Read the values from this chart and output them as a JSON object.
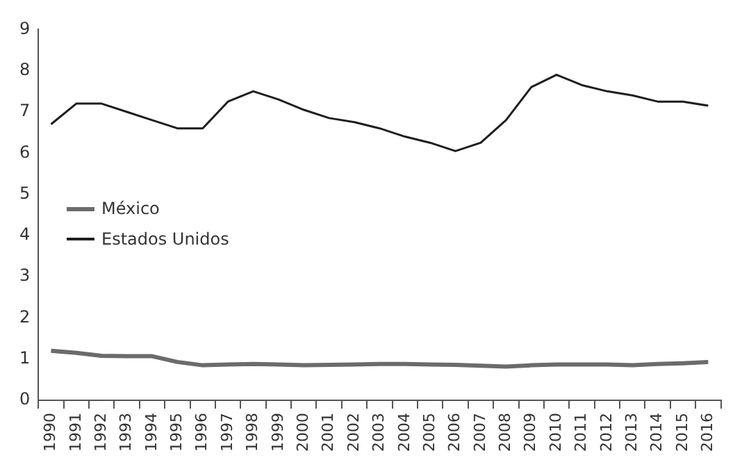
{
  "chart_data": {
    "type": "line",
    "categories": [
      "1990",
      "1991",
      "1992",
      "1993",
      "1994",
      "1995",
      "1996",
      "1997",
      "1998",
      "1999",
      "2000",
      "2001",
      "2002",
      "2003",
      "2004",
      "2005",
      "2006",
      "2007",
      "2008",
      "2009",
      "2010",
      "2011",
      "2012",
      "2013",
      "2014",
      "2015",
      "2016"
    ],
    "series": [
      {
        "name": "México",
        "color": "#6b6b6b",
        "values": [
          1.2,
          1.15,
          1.08,
          1.07,
          1.07,
          0.93,
          0.85,
          0.87,
          0.88,
          0.87,
          0.85,
          0.86,
          0.87,
          0.88,
          0.88,
          0.87,
          0.86,
          0.84,
          0.82,
          0.85,
          0.87,
          0.87,
          0.87,
          0.85,
          0.88,
          0.9,
          0.93
        ]
      },
      {
        "name": "Estados Unidos",
        "color": "#1e1e1e",
        "values": [
          6.7,
          7.2,
          7.2,
          7.0,
          6.8,
          6.6,
          6.6,
          7.25,
          7.5,
          7.3,
          7.05,
          6.85,
          6.75,
          6.6,
          6.4,
          6.25,
          6.05,
          6.25,
          6.8,
          7.6,
          7.9,
          7.65,
          7.5,
          7.4,
          7.25,
          7.25,
          7.15
        ]
      }
    ],
    "ylim": [
      0,
      9
    ],
    "yticks": [
      0,
      1,
      2,
      3,
      4,
      5,
      6,
      7,
      8,
      9
    ],
    "grid": false,
    "legend": "left",
    "marker": "none",
    "line_style": "solid"
  }
}
